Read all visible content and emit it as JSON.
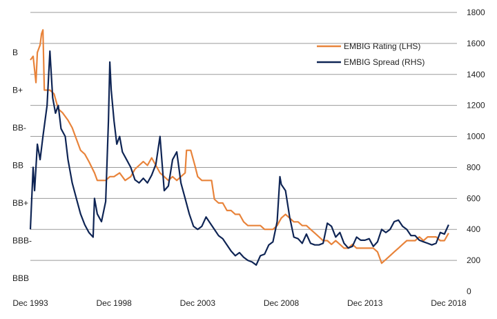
{
  "chart_data": {
    "type": "line",
    "title": "",
    "grid": true,
    "legend_placement": "top-right",
    "left_axis": {
      "type": "category",
      "labels_top_to_bottom": [
        "B",
        "B+",
        "BB-",
        "BB",
        "BB+",
        "BBB-",
        "BBB"
      ]
    },
    "right_axis": {
      "ylim": [
        0,
        1800
      ],
      "ticks": [
        0,
        200,
        400,
        600,
        800,
        1000,
        1200,
        1400,
        1600,
        1800
      ]
    },
    "x_axis": {
      "range": [
        "1993-12",
        "2019-06"
      ],
      "tick_labels": [
        "Dec 1993",
        "Dec 1998",
        "Dec 2003",
        "Dec 2008",
        "Dec 2013",
        "Dec 2018"
      ]
    },
    "series": [
      {
        "name": "EMBIG Rating (LHS)",
        "axis": "left",
        "color": "#E8833A",
        "unit_note": "rating notch, 0 = B, 6 = BBB",
        "points": [
          [
            "1993-12",
            0.2
          ],
          [
            "1994-02",
            0.1
          ],
          [
            "1994-04",
            0.8
          ],
          [
            "1994-05",
            0.0
          ],
          [
            "1994-07",
            -0.2
          ],
          [
            "1994-08",
            -0.5
          ],
          [
            "1994-09",
            -0.6
          ],
          [
            "1994-10",
            1.0
          ],
          [
            "1995-02",
            1.0
          ],
          [
            "1995-05",
            1.1
          ],
          [
            "1995-08",
            1.5
          ],
          [
            "1995-11",
            1.6
          ],
          [
            "1996-03",
            1.8
          ],
          [
            "1996-06",
            2.0
          ],
          [
            "1996-08",
            2.2
          ],
          [
            "1996-12",
            2.6
          ],
          [
            "1997-03",
            2.7
          ],
          [
            "1997-06",
            2.9
          ],
          [
            "1997-10",
            3.2
          ],
          [
            "1997-12",
            3.4
          ],
          [
            "1998-06",
            3.4
          ],
          [
            "1998-09",
            3.3
          ],
          [
            "1998-12",
            3.3
          ],
          [
            "1999-04",
            3.2
          ],
          [
            "1999-08",
            3.4
          ],
          [
            "1999-12",
            3.3
          ],
          [
            "2000-03",
            3.1
          ],
          [
            "2000-06",
            3.0
          ],
          [
            "2000-09",
            2.9
          ],
          [
            "2000-12",
            3.0
          ],
          [
            "2001-03",
            2.8
          ],
          [
            "2001-06",
            3.0
          ],
          [
            "2001-09",
            3.2
          ],
          [
            "2001-12",
            3.3
          ],
          [
            "2002-03",
            3.4
          ],
          [
            "2002-06",
            3.3
          ],
          [
            "2002-09",
            3.4
          ],
          [
            "2002-12",
            3.3
          ],
          [
            "2003-03",
            3.2
          ],
          [
            "2003-04",
            2.6
          ],
          [
            "2003-07",
            2.6
          ],
          [
            "2003-10",
            3.0
          ],
          [
            "2003-12",
            3.3
          ],
          [
            "2004-03",
            3.4
          ],
          [
            "2004-06",
            3.4
          ],
          [
            "2004-10",
            3.4
          ],
          [
            "2004-12",
            3.9
          ],
          [
            "2005-03",
            4.0
          ],
          [
            "2005-06",
            4.0
          ],
          [
            "2005-09",
            4.2
          ],
          [
            "2005-12",
            4.2
          ],
          [
            "2006-03",
            4.3
          ],
          [
            "2006-06",
            4.3
          ],
          [
            "2006-09",
            4.5
          ],
          [
            "2006-12",
            4.6
          ],
          [
            "2007-03",
            4.6
          ],
          [
            "2007-06",
            4.6
          ],
          [
            "2007-09",
            4.6
          ],
          [
            "2007-12",
            4.7
          ],
          [
            "2008-03",
            4.7
          ],
          [
            "2008-06",
            4.7
          ],
          [
            "2008-09",
            4.6
          ],
          [
            "2008-12",
            4.4
          ],
          [
            "2009-03",
            4.3
          ],
          [
            "2009-06",
            4.4
          ],
          [
            "2009-09",
            4.5
          ],
          [
            "2009-12",
            4.5
          ],
          [
            "2010-03",
            4.6
          ],
          [
            "2010-06",
            4.6
          ],
          [
            "2010-09",
            4.7
          ],
          [
            "2010-12",
            4.8
          ],
          [
            "2011-03",
            4.9
          ],
          [
            "2011-06",
            5.0
          ],
          [
            "2011-09",
            5.0
          ],
          [
            "2011-12",
            5.1
          ],
          [
            "2012-03",
            5.0
          ],
          [
            "2012-06",
            5.1
          ],
          [
            "2012-09",
            5.2
          ],
          [
            "2012-12",
            5.2
          ],
          [
            "2013-03",
            5.1
          ],
          [
            "2013-06",
            5.2
          ],
          [
            "2013-09",
            5.2
          ],
          [
            "2013-12",
            5.2
          ],
          [
            "2014-03",
            5.2
          ],
          [
            "2014-06",
            5.2
          ],
          [
            "2014-09",
            5.3
          ],
          [
            "2014-12",
            5.6
          ],
          [
            "2015-03",
            5.5
          ],
          [
            "2015-06",
            5.4
          ],
          [
            "2015-09",
            5.3
          ],
          [
            "2015-12",
            5.2
          ],
          [
            "2016-03",
            5.1
          ],
          [
            "2016-06",
            5.0
          ],
          [
            "2016-09",
            5.0
          ],
          [
            "2016-12",
            5.0
          ],
          [
            "2017-03",
            4.9
          ],
          [
            "2017-06",
            5.0
          ],
          [
            "2017-09",
            4.9
          ],
          [
            "2017-12",
            4.9
          ],
          [
            "2018-03",
            4.9
          ],
          [
            "2018-06",
            5.0
          ],
          [
            "2018-09",
            5.0
          ],
          [
            "2018-12",
            4.8
          ]
        ]
      },
      {
        "name": "EMBIG Spread (RHS)",
        "axis": "right",
        "color": "#0E2454",
        "unit_note": "basis points",
        "points": [
          [
            "1993-12",
            400
          ],
          [
            "1994-02",
            800
          ],
          [
            "1994-03",
            650
          ],
          [
            "1994-05",
            950
          ],
          [
            "1994-07",
            850
          ],
          [
            "1994-09",
            1000
          ],
          [
            "1994-12",
            1200
          ],
          [
            "1995-02",
            1550
          ],
          [
            "1995-04",
            1250
          ],
          [
            "1995-06",
            1150
          ],
          [
            "1995-08",
            1200
          ],
          [
            "1995-10",
            1050
          ],
          [
            "1996-01",
            1000
          ],
          [
            "1996-03",
            850
          ],
          [
            "1996-06",
            700
          ],
          [
            "1996-09",
            600
          ],
          [
            "1996-12",
            500
          ],
          [
            "1997-03",
            430
          ],
          [
            "1997-06",
            380
          ],
          [
            "1997-09",
            350
          ],
          [
            "1997-10",
            600
          ],
          [
            "1997-12",
            500
          ],
          [
            "1998-03",
            450
          ],
          [
            "1998-06",
            580
          ],
          [
            "1998-08",
            1100
          ],
          [
            "1998-09",
            1480
          ],
          [
            "1998-10",
            1300
          ],
          [
            "1998-12",
            1100
          ],
          [
            "1999-02",
            950
          ],
          [
            "1999-04",
            1000
          ],
          [
            "1999-06",
            900
          ],
          [
            "1999-09",
            850
          ],
          [
            "1999-12",
            800
          ],
          [
            "2000-03",
            720
          ],
          [
            "2000-06",
            700
          ],
          [
            "2000-09",
            730
          ],
          [
            "2000-12",
            700
          ],
          [
            "2001-03",
            750
          ],
          [
            "2001-06",
            820
          ],
          [
            "2001-09",
            1000
          ],
          [
            "2001-12",
            650
          ],
          [
            "2002-03",
            680
          ],
          [
            "2002-06",
            850
          ],
          [
            "2002-09",
            900
          ],
          [
            "2002-12",
            700
          ],
          [
            "2003-03",
            600
          ],
          [
            "2003-06",
            500
          ],
          [
            "2003-09",
            420
          ],
          [
            "2003-12",
            400
          ],
          [
            "2004-03",
            420
          ],
          [
            "2004-06",
            480
          ],
          [
            "2004-09",
            440
          ],
          [
            "2004-12",
            400
          ],
          [
            "2005-03",
            360
          ],
          [
            "2005-06",
            340
          ],
          [
            "2005-09",
            300
          ],
          [
            "2005-12",
            260
          ],
          [
            "2006-03",
            230
          ],
          [
            "2006-06",
            250
          ],
          [
            "2006-09",
            220
          ],
          [
            "2006-12",
            200
          ],
          [
            "2007-03",
            190
          ],
          [
            "2007-06",
            170
          ],
          [
            "2007-09",
            230
          ],
          [
            "2007-12",
            240
          ],
          [
            "2008-03",
            300
          ],
          [
            "2008-06",
            320
          ],
          [
            "2008-09",
            450
          ],
          [
            "2008-11",
            740
          ],
          [
            "2008-12",
            690
          ],
          [
            "2009-03",
            650
          ],
          [
            "2009-06",
            480
          ],
          [
            "2009-09",
            350
          ],
          [
            "2009-12",
            340
          ],
          [
            "2010-03",
            310
          ],
          [
            "2010-06",
            370
          ],
          [
            "2010-09",
            310
          ],
          [
            "2010-12",
            300
          ],
          [
            "2011-03",
            300
          ],
          [
            "2011-06",
            310
          ],
          [
            "2011-09",
            440
          ],
          [
            "2011-12",
            420
          ],
          [
            "2012-03",
            350
          ],
          [
            "2012-06",
            380
          ],
          [
            "2012-09",
            310
          ],
          [
            "2012-12",
            280
          ],
          [
            "2013-03",
            290
          ],
          [
            "2013-06",
            350
          ],
          [
            "2013-09",
            330
          ],
          [
            "2013-12",
            330
          ],
          [
            "2014-03",
            340
          ],
          [
            "2014-06",
            290
          ],
          [
            "2014-09",
            320
          ],
          [
            "2014-12",
            400
          ],
          [
            "2015-03",
            380
          ],
          [
            "2015-06",
            400
          ],
          [
            "2015-09",
            450
          ],
          [
            "2015-12",
            460
          ],
          [
            "2016-03",
            420
          ],
          [
            "2016-06",
            400
          ],
          [
            "2016-09",
            360
          ],
          [
            "2016-12",
            360
          ],
          [
            "2017-03",
            330
          ],
          [
            "2017-06",
            320
          ],
          [
            "2017-09",
            310
          ],
          [
            "2017-12",
            300
          ],
          [
            "2018-03",
            310
          ],
          [
            "2018-06",
            380
          ],
          [
            "2018-09",
            370
          ],
          [
            "2018-12",
            430
          ]
        ]
      }
    ]
  }
}
